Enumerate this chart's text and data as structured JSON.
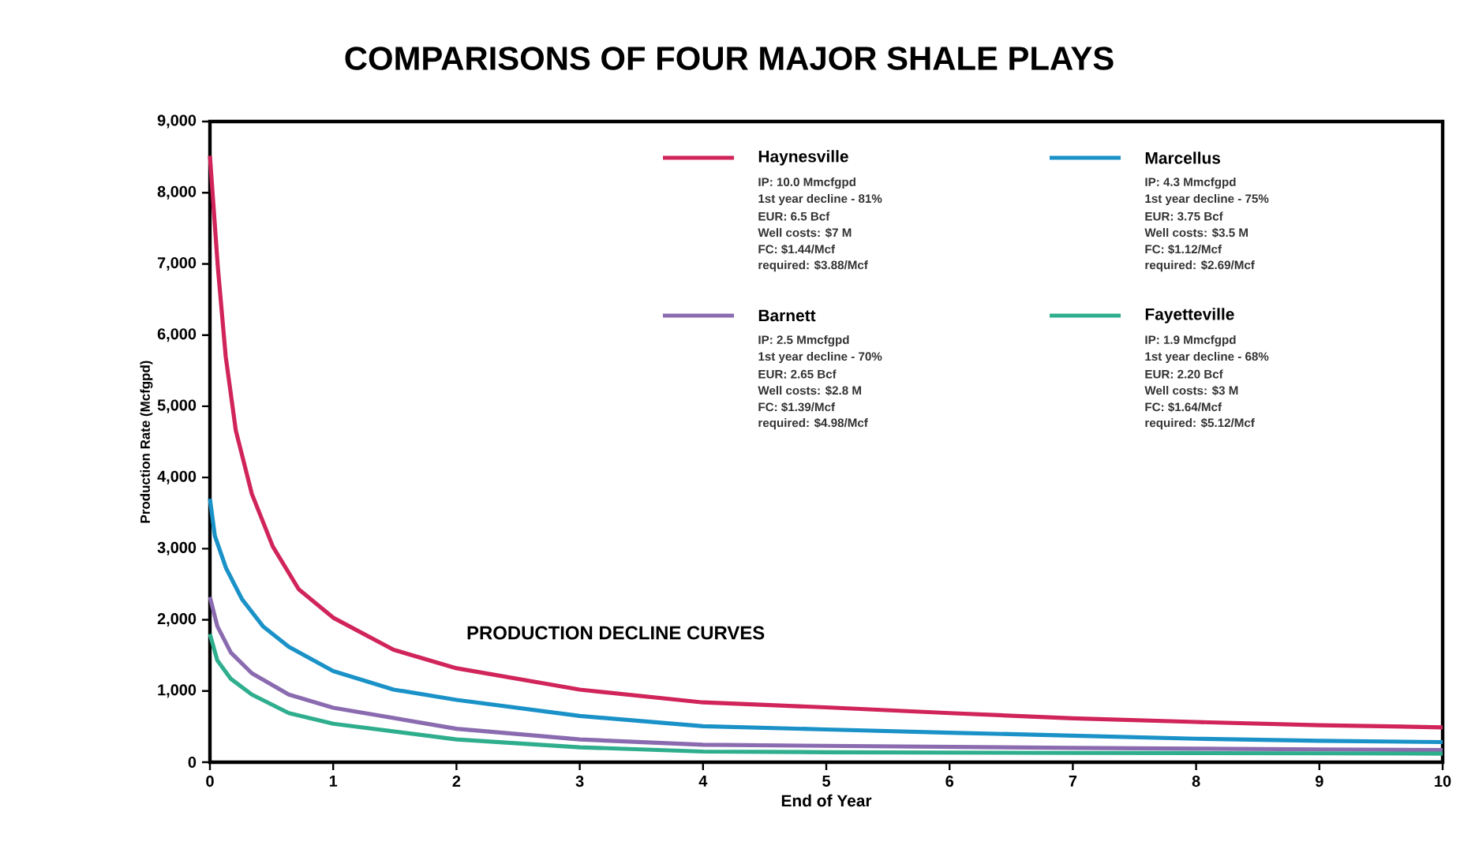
{
  "chart_data": {
    "type": "line",
    "title": "COMPARISONS OF FOUR MAJOR SHALE PLAYS",
    "xlabel": "End of Year",
    "ylabel": "Production Rate (Mcfgpd)",
    "xlim": [
      0,
      10
    ],
    "ylim": [
      0,
      9000
    ],
    "xticks": [
      0,
      1,
      2,
      3,
      4,
      5,
      6,
      7,
      8,
      9,
      10
    ],
    "yticks": [
      0,
      {
        "value": 1000,
        "label": "1,000"
      },
      {
        "value": 2000,
        "label": "2,000"
      },
      {
        "value": 3000,
        "label": "3,000"
      },
      {
        "value": 4000,
        "label": "4,000"
      },
      {
        "value": 5000,
        "label": "5,000"
      },
      {
        "value": 6000,
        "label": "6,000"
      },
      {
        "value": 7000,
        "label": "7,000"
      },
      {
        "value": 8000,
        "label": "8,000"
      },
      {
        "value": 9000,
        "label": "9,000"
      }
    ],
    "legend": "top right",
    "marker": "none",
    "line_style": "solid",
    "series": [
      {
        "name": "Haynesville",
        "color": "#d0245a",
        "x": [
          0,
          0.064,
          0.128,
          0.21,
          0.34,
          0.51,
          0.72,
          1,
          1.49,
          2,
          3,
          4,
          5,
          6,
          7,
          8,
          9,
          10
        ],
        "values": [
          8520,
          6960,
          5700,
          4660,
          3770,
          3030,
          2430,
          2030,
          1580,
          1320,
          1020,
          840,
          770,
          690,
          617,
          565,
          520,
          490
        ]
      },
      {
        "name": "Marcellus",
        "color": "#1a92c8",
        "x": [
          0,
          0.04,
          0.13,
          0.26,
          0.43,
          0.64,
          1,
          1.49,
          2,
          3,
          4,
          5,
          6,
          7,
          8,
          9,
          10
        ],
        "values": [
          3700,
          3180,
          2730,
          2290,
          1910,
          1620,
          1280,
          1020,
          875,
          650,
          505,
          460,
          415,
          372,
          330,
          300,
          283
        ]
      },
      {
        "name": "Barnett",
        "color": "#8a6bb0",
        "x": [
          0,
          0.06,
          0.17,
          0.34,
          0.64,
          1,
          2,
          3,
          4,
          5,
          6,
          7,
          8,
          9,
          10
        ],
        "values": [
          2320,
          1910,
          1540,
          1250,
          950,
          765,
          470,
          320,
          245,
          230,
          215,
          200,
          190,
          180,
          170
        ]
      },
      {
        "name": "Fayetteville",
        "color": "#2fae8e",
        "x": [
          0,
          0.06,
          0.17,
          0.34,
          0.64,
          1,
          2,
          3,
          4,
          5,
          6,
          7,
          8,
          9,
          10
        ],
        "values": [
          1800,
          1430,
          1170,
          950,
          690,
          540,
          320,
          210,
          150,
          140,
          135,
          130,
          128,
          125,
          120
        ]
      }
    ],
    "annotations": [
      "PRODUCTION DECLINE CURVES",
      "IP:  10.0 Mmcfgpd",
      "1st year decline - 81%",
      "EUR:  6.5 Bcf",
      "Well costs:  $7 M",
      "FC:  $1.44/Mcf",
      "required:  $3.88/Mcf",
      "IP:  4.3 Mmcfgpd",
      "1st year decline - 75%",
      "EUR:  3.75 Bcf",
      "Well costs:  $3.5 M",
      "FC:  $1.12/Mcf",
      "required:  $2.69/Mcf",
      "IP:  2.5 Mmcfgpd",
      "1st year decline - 70%",
      "EUR:  2.65 Bcf",
      "Well costs:  $2.8 M",
      "FC:  $1.39/Mcf",
      "required:  $4.98/Mcf",
      "IP:  1.9 Mmcfgpd",
      "1st year decline - 68%",
      "EUR:  2.20 Bcf",
      "Well costs:  $3 M",
      "FC:  $1.64/Mcf",
      "required:  $5.12/Mcf"
    ]
  }
}
